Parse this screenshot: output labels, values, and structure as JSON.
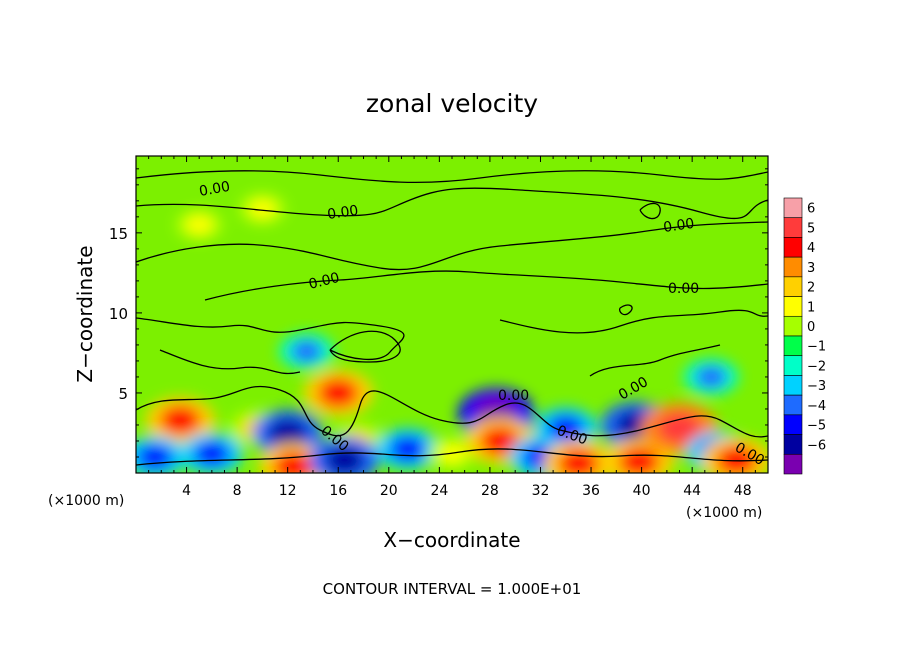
{
  "chart_data": {
    "type": "heatmap",
    "title": "zonal velocity",
    "xlabel": "X−coordinate",
    "ylabel": "Z−coordinate",
    "x_unit_left": "(×1000 m)",
    "x_unit_right": "(×1000 m)",
    "footer": "CONTOUR INTERVAL = 1.000E+01",
    "xlim": [
      0,
      50
    ],
    "ylim": [
      0,
      19.8
    ],
    "x_ticks": [
      4,
      8,
      12,
      16,
      20,
      24,
      28,
      32,
      36,
      40,
      44,
      48
    ],
    "y_ticks": [
      5,
      10,
      15
    ],
    "colorbar": {
      "levels": [
        6,
        5,
        4,
        3,
        2,
        1,
        0,
        -1,
        -2,
        -3,
        -4,
        -5,
        -6
      ],
      "colors": [
        "#f7a0a8",
        "#ff3b3b",
        "#ff0000",
        "#ff8c00",
        "#ffd000",
        "#ffff00",
        "#a6ff00",
        "#00ff4a",
        "#00ffc8",
        "#00d2ff",
        "#1e6bff",
        "#0000ff",
        "#0000a0",
        "#7a00b0"
      ]
    },
    "contour_labels": [
      "0.00",
      "0.00",
      "0.00",
      "0.00",
      "0.00",
      "0.00",
      "0.00",
      "0.00",
      "0.00",
      "0.00"
    ],
    "features": [
      {
        "type": "positive",
        "x": 3.5,
        "z": 3.3,
        "u": 5
      },
      {
        "type": "negative",
        "x": 1.5,
        "z": 1.0,
        "u": -4
      },
      {
        "type": "positive",
        "x": 9.5,
        "z": 2.8,
        "u": 3
      },
      {
        "type": "negative",
        "x": 6.0,
        "z": 1.2,
        "u": -4
      },
      {
        "type": "negative",
        "x": 12.0,
        "z": 2.5,
        "u": -5
      },
      {
        "type": "positive",
        "x": 12.5,
        "z": 0.4,
        "u": 5
      },
      {
        "type": "positive",
        "x": 16.0,
        "z": 5.0,
        "u": 5
      },
      {
        "type": "positive",
        "x": 17.5,
        "z": 2.0,
        "u": 3
      },
      {
        "type": "negative",
        "x": 16.5,
        "z": 0.8,
        "u": -5
      },
      {
        "type": "negative",
        "x": 21.5,
        "z": 1.5,
        "u": -4
      },
      {
        "type": "positive",
        "x": 25.0,
        "z": 1.2,
        "u": 2
      },
      {
        "type": "negative",
        "x": 28.5,
        "z": 3.7,
        "u": -6
      },
      {
        "type": "positive",
        "x": 28.8,
        "z": 2.0,
        "u": 5
      },
      {
        "type": "negative",
        "x": 32.0,
        "z": 1.0,
        "u": -4
      },
      {
        "type": "negative",
        "x": 34.0,
        "z": 2.8,
        "u": -4
      },
      {
        "type": "positive",
        "x": 35.0,
        "z": 0.6,
        "u": 5
      },
      {
        "type": "negative",
        "x": 39.5,
        "z": 3.0,
        "u": -5
      },
      {
        "type": "positive",
        "x": 39.8,
        "z": 0.7,
        "u": 5
      },
      {
        "type": "positive",
        "x": 43.0,
        "z": 2.8,
        "u": 6
      },
      {
        "type": "negative",
        "x": 46.0,
        "z": 1.3,
        "u": -4
      },
      {
        "type": "negative",
        "x": 45.5,
        "z": 6.0,
        "u": -3
      },
      {
        "type": "positive",
        "x": 47.5,
        "z": 0.8,
        "u": 5
      },
      {
        "type": "positive",
        "x": 5.0,
        "z": 15.5,
        "u": 2
      },
      {
        "type": "positive",
        "x": 10.0,
        "z": 16.5,
        "u": 2
      },
      {
        "type": "negative",
        "x": 13.5,
        "z": 7.6,
        "u": -3
      }
    ]
  }
}
